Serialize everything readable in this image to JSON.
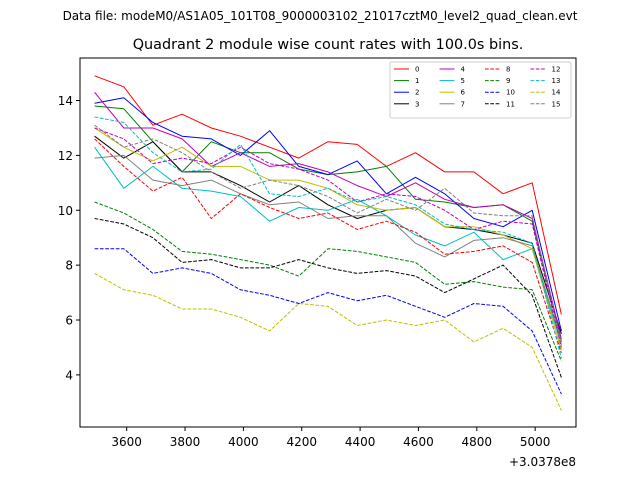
{
  "chart_data": {
    "type": "line",
    "suptitle": "Data file: modeM0/AS1A05_101T08_9000003102_21017cztM0_level2_quad_clean.evt",
    "title": "Quadrant 2 module wise count rates with 100.0s bins.",
    "xlabel": "",
    "ylabel": "",
    "offset_text": "+3.0378e8",
    "xlim": [
      3440,
      5140
    ],
    "ylim": [
      2.1,
      15.55
    ],
    "x_ticks": [
      3600,
      3800,
      4000,
      4200,
      4400,
      4600,
      4800,
      5000
    ],
    "y_ticks": [
      4,
      6,
      8,
      10,
      12,
      14
    ],
    "x": [
      3490,
      3590,
      3690,
      3790,
      3890,
      3990,
      4090,
      4190,
      4290,
      4390,
      4490,
      4590,
      4690,
      4790,
      4890,
      4990,
      5090
    ],
    "legend_position": "upper right",
    "series": [
      {
        "name": "0",
        "color": "#ff0000",
        "dash": "solid",
        "values": [
          14.9,
          14.5,
          13.1,
          13.5,
          13.0,
          12.7,
          12.3,
          11.9,
          12.5,
          12.4,
          11.6,
          12.1,
          11.4,
          11.4,
          10.6,
          11.0,
          6.2
        ]
      },
      {
        "name": "1",
        "color": "#008000",
        "dash": "solid",
        "values": [
          13.8,
          13.7,
          12.5,
          11.4,
          12.5,
          12.1,
          12.1,
          11.5,
          11.3,
          11.4,
          11.6,
          10.4,
          10.3,
          10.1,
          10.2,
          9.6,
          5.2
        ]
      },
      {
        "name": "2",
        "color": "#0000ff",
        "dash": "solid",
        "values": [
          13.9,
          14.1,
          13.2,
          12.7,
          12.6,
          12.0,
          12.9,
          11.6,
          11.3,
          11.8,
          10.6,
          11.2,
          10.6,
          9.7,
          9.4,
          10.0,
          5.6
        ]
      },
      {
        "name": "3",
        "color": "#000000",
        "dash": "solid",
        "values": [
          12.7,
          11.9,
          12.5,
          11.4,
          11.4,
          10.9,
          10.3,
          10.9,
          10.2,
          9.7,
          10.0,
          10.1,
          9.4,
          9.3,
          9.1,
          8.8,
          5.5
        ]
      },
      {
        "name": "4",
        "color": "#bf00bf",
        "dash": "solid",
        "values": [
          14.3,
          13.0,
          13.0,
          12.6,
          11.6,
          12.1,
          11.6,
          11.7,
          11.4,
          10.9,
          10.5,
          11.0,
          10.4,
          10.1,
          10.2,
          9.7,
          5.3
        ]
      },
      {
        "name": "5",
        "color": "#00bfbf",
        "dash": "solid",
        "values": [
          12.3,
          10.8,
          11.6,
          10.8,
          10.7,
          10.5,
          9.6,
          10.1,
          10.0,
          10.4,
          9.8,
          9.1,
          8.7,
          9.2,
          8.2,
          8.6,
          5.1
        ]
      },
      {
        "name": "6",
        "color": "#bfbf00",
        "dash": "solid",
        "values": [
          13.0,
          12.3,
          11.8,
          12.3,
          11.6,
          11.6,
          11.1,
          11.1,
          10.8,
          10.2,
          10.0,
          10.1,
          9.4,
          9.4,
          9.1,
          8.6,
          4.9
        ]
      },
      {
        "name": "7",
        "color": "#808080",
        "dash": "solid",
        "values": [
          11.9,
          12.0,
          11.1,
          10.9,
          11.1,
          10.6,
          10.2,
          10.3,
          9.7,
          9.8,
          9.8,
          8.8,
          8.3,
          8.9,
          9.0,
          8.7,
          5.2
        ]
      },
      {
        "name": "8",
        "color": "#ff0000",
        "dash": "dashed",
        "values": [
          12.6,
          11.6,
          10.7,
          11.2,
          9.7,
          10.6,
          10.1,
          9.7,
          9.9,
          9.3,
          9.6,
          9.2,
          8.4,
          8.5,
          8.7,
          8.1,
          4.8
        ]
      },
      {
        "name": "9",
        "color": "#008000",
        "dash": "dashed",
        "values": [
          10.3,
          9.9,
          9.3,
          8.5,
          8.4,
          8.2,
          8.0,
          7.6,
          8.6,
          8.5,
          8.3,
          8.1,
          7.3,
          7.4,
          7.2,
          7.1,
          4.5
        ]
      },
      {
        "name": "10",
        "color": "#0000ff",
        "dash": "dashed",
        "values": [
          8.6,
          8.6,
          7.7,
          7.9,
          7.7,
          7.1,
          6.9,
          6.6,
          7.0,
          6.7,
          6.9,
          6.5,
          6.1,
          6.6,
          6.5,
          5.6,
          3.3
        ]
      },
      {
        "name": "11",
        "color": "#000000",
        "dash": "dashed",
        "values": [
          9.7,
          9.5,
          9.0,
          8.1,
          8.2,
          7.9,
          7.9,
          8.2,
          7.9,
          7.7,
          7.8,
          7.6,
          7.0,
          7.5,
          8.0,
          6.9,
          3.9
        ]
      },
      {
        "name": "12",
        "color": "#bf00bf",
        "dash": "dashed",
        "values": [
          13.0,
          12.6,
          11.7,
          11.9,
          11.7,
          12.3,
          11.7,
          11.5,
          11.1,
          10.3,
          10.6,
          10.5,
          10.0,
          9.3,
          9.6,
          9.5,
          5.0
        ]
      },
      {
        "name": "13",
        "color": "#00bfbf",
        "dash": "dashed",
        "values": [
          13.4,
          13.2,
          12.1,
          11.4,
          11.5,
          12.4,
          10.6,
          10.5,
          10.8,
          10.3,
          10.5,
          10.2,
          9.5,
          9.3,
          9.2,
          8.8,
          4.6
        ]
      },
      {
        "name": "14",
        "color": "#bfbf00",
        "dash": "dashed",
        "values": [
          7.7,
          7.1,
          6.9,
          6.4,
          6.4,
          6.1,
          5.6,
          6.6,
          6.5,
          5.8,
          6.0,
          5.8,
          6.0,
          5.2,
          5.7,
          5.0,
          2.7
        ]
      },
      {
        "name": "15",
        "color": "#808080",
        "dash": "dashed",
        "values": [
          13.1,
          12.3,
          12.6,
          12.1,
          11.4,
          10.8,
          11.1,
          10.9,
          10.5,
          9.9,
          10.4,
          10.0,
          10.8,
          9.9,
          9.8,
          9.8,
          5.1
        ]
      }
    ]
  }
}
